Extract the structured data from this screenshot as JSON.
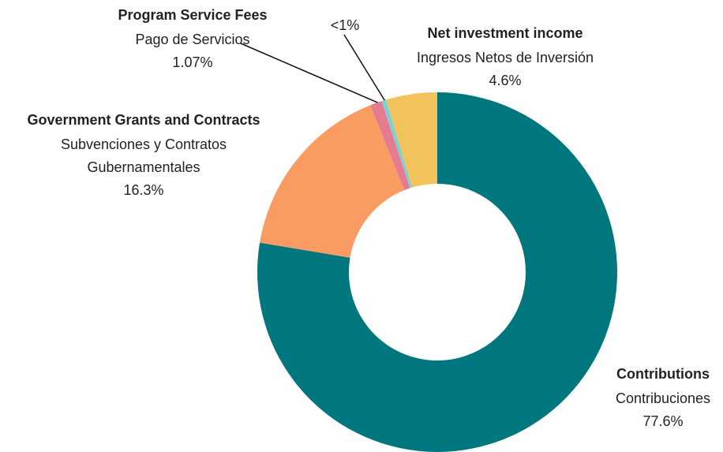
{
  "chart_data": {
    "type": "donut",
    "categories": [
      "Contributions",
      "Government Grants and Contracts",
      "Program Service Fees",
      null,
      "Net investment income"
    ],
    "translations": [
      [
        "Contribuciones"
      ],
      [
        "Subvenciones y Contratos",
        "Gubernamentales"
      ],
      [
        "Pago de Servicios"
      ],
      null,
      [
        "Ingresos Netos de Inversión"
      ]
    ],
    "values": [
      77.6,
      16.3,
      1.07,
      0.4,
      4.6
    ],
    "value_labels": [
      "77.6%",
      "16.3%",
      "1.07%",
      "<1%",
      "4.6%"
    ],
    "colors": [
      "#00777e",
      "#f99b62",
      "#e47b8e",
      "#7fd0d6",
      "#f2c35b"
    ]
  }
}
